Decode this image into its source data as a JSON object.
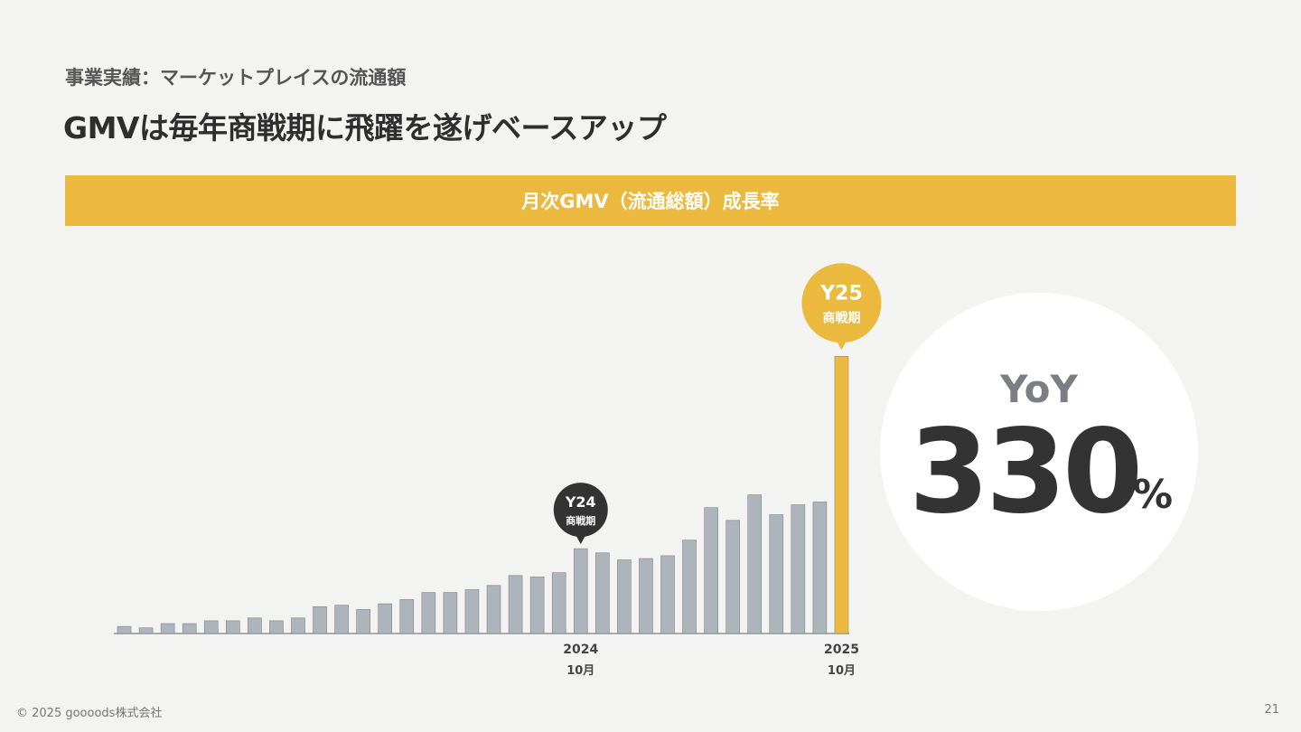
{
  "slide": {
    "subtitle": "事業実績：マーケットプレイスの流通額",
    "title": "GMVは毎年商戦期に飛躍を遂げベースアップ",
    "banner": "月次GMV（流通総額）成長率",
    "footer": "© 2025 goooods株式会社",
    "page_number": "21"
  },
  "yoy": {
    "label": "YoY",
    "value": "330",
    "unit": "%"
  },
  "colors": {
    "accent": "#ecb93f",
    "bar": "#adb4ba",
    "dark_badge": "#333333",
    "text": "#333333"
  },
  "chart_data": {
    "type": "bar",
    "title": "月次GMV（流通総額）成長率",
    "values": [
      2.5,
      2,
      3.5,
      3.5,
      4.5,
      4.5,
      5.5,
      4.5,
      5.5,
      9.5,
      10,
      8.5,
      10.5,
      12,
      14.5,
      14.5,
      15.5,
      17,
      20.5,
      20,
      21.5,
      30,
      28.5,
      26,
      26.5,
      27.5,
      33,
      44.5,
      40,
      49,
      42,
      45.5,
      46.5,
      98
    ],
    "highlight_index": 33,
    "x_labels": [
      {
        "index": 21,
        "year": "2024",
        "month": "10月"
      },
      {
        "index": 33,
        "year": "2025",
        "month": "10月"
      }
    ],
    "callouts": [
      {
        "index": 21,
        "line1": "Y24",
        "line2": "商戦期",
        "style": "dark"
      },
      {
        "index": 33,
        "line1": "Y25",
        "line2": "商戦期",
        "style": "accent"
      }
    ],
    "ylim": [
      0,
      100
    ],
    "grid": false,
    "legend": "none"
  }
}
